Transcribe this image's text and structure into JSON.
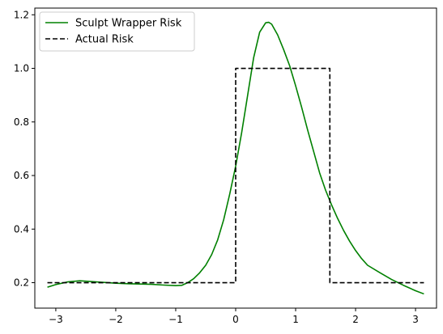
{
  "chart_data": {
    "type": "line",
    "title": "",
    "xlabel": "",
    "ylabel": "",
    "xlim": [
      -3.35,
      3.35
    ],
    "ylim": [
      0.105,
      1.225
    ],
    "xticks": [
      -3,
      -2,
      -1,
      0,
      1,
      2,
      3
    ],
    "yticks": [
      0.2,
      0.4,
      0.6,
      0.8,
      1.0,
      1.2
    ],
    "xtick_labels": [
      "−3",
      "−2",
      "−1",
      "0",
      "1",
      "2",
      "3"
    ],
    "ytick_labels": [
      "0.2",
      "0.4",
      "0.6",
      "0.8",
      "1.0",
      "1.2"
    ],
    "grid": false,
    "legend_position": "top-left",
    "series": [
      {
        "name": "Sculpt Wrapper Risk",
        "color": "#008000",
        "style": "solid",
        "x": [
          -3.14,
          -3.0,
          -2.8,
          -2.6,
          -2.4,
          -2.2,
          -2.0,
          -1.8,
          -1.6,
          -1.4,
          -1.2,
          -1.0,
          -0.9,
          -0.8,
          -0.7,
          -0.6,
          -0.5,
          -0.4,
          -0.3,
          -0.2,
          -0.1,
          0.0,
          0.1,
          0.2,
          0.3,
          0.4,
          0.5,
          0.55,
          0.6,
          0.7,
          0.8,
          0.9,
          1.0,
          1.1,
          1.2,
          1.3,
          1.4,
          1.5,
          1.6,
          1.7,
          1.8,
          1.9,
          2.0,
          2.1,
          2.2,
          2.4,
          2.6,
          2.8,
          3.0,
          3.14
        ],
        "y": [
          0.183,
          0.193,
          0.203,
          0.207,
          0.204,
          0.201,
          0.198,
          0.196,
          0.195,
          0.194,
          0.191,
          0.189,
          0.19,
          0.2,
          0.215,
          0.237,
          0.265,
          0.305,
          0.36,
          0.435,
          0.53,
          0.635,
          0.76,
          0.9,
          1.04,
          1.135,
          1.17,
          1.172,
          1.165,
          1.125,
          1.07,
          1.01,
          0.935,
          0.855,
          0.77,
          0.69,
          0.61,
          0.545,
          0.49,
          0.44,
          0.395,
          0.355,
          0.32,
          0.29,
          0.265,
          0.238,
          0.212,
          0.19,
          0.17,
          0.158
        ]
      },
      {
        "name": "Actual Risk",
        "color": "#000000",
        "style": "dashed",
        "x": [
          -3.14,
          0.0,
          0.0,
          1.5708,
          1.5708,
          3.14
        ],
        "y": [
          0.2,
          0.2,
          1.0,
          1.0,
          0.2,
          0.2
        ]
      }
    ]
  }
}
